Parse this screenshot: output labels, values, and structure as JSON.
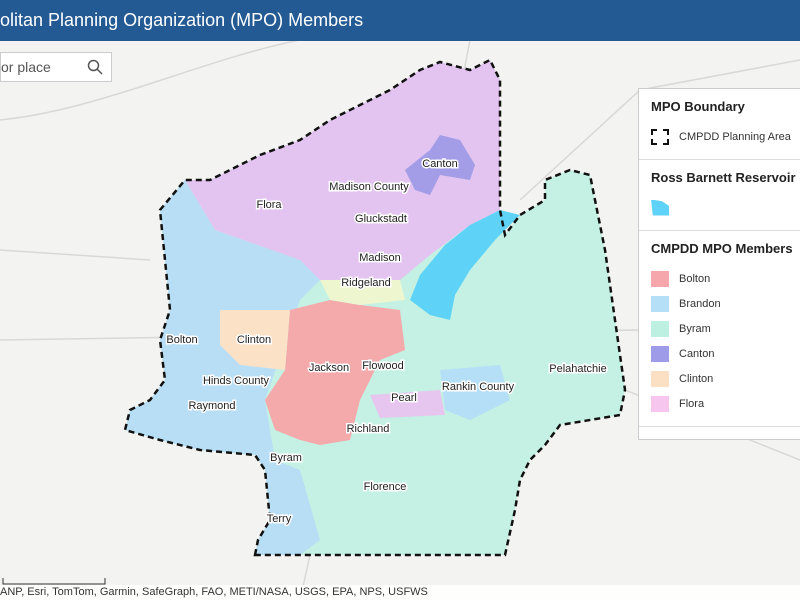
{
  "header": {
    "title": "olitan Planning Organization (MPO) Members"
  },
  "search": {
    "placeholder": "or place"
  },
  "map": {
    "labels": [
      "Canton",
      "Madison County",
      "Flora",
      "Gluckstadt",
      "Madison",
      "Ridgeland",
      "Bolton",
      "Clinton",
      "Jackson",
      "Flowood",
      "Hinds County",
      "Pelahatchie",
      "Rankin County",
      "Raymond",
      "Pearl",
      "Richland",
      "Byram",
      "Florence",
      "Terry"
    ]
  },
  "legend": {
    "sections": [
      {
        "title": "MPO Boundary",
        "items": [
          {
            "label": "CMPDD Planning Area"
          }
        ]
      },
      {
        "title": "Ross Barnett Reservoir",
        "items": [
          {
            "color": "#5fd3f7"
          }
        ]
      },
      {
        "title": "CMPDD MPO Members",
        "items": [
          {
            "label": "Bolton",
            "color": "#f5a7ab"
          },
          {
            "label": "Brandon",
            "color": "#b5dff7"
          },
          {
            "label": "Byram",
            "color": "#bdf0e1"
          },
          {
            "label": "Canton",
            "color": "#9e9be8"
          },
          {
            "label": "Clinton",
            "color": "#fbe0c4"
          },
          {
            "label": "Flora",
            "color": "#f6c6ef"
          }
        ]
      }
    ]
  },
  "attribution": "ANP, Esri, TomTom, Garmin, SafeGraph, FAO, METI/NASA, USGS, EPA, NPS, USFWS"
}
